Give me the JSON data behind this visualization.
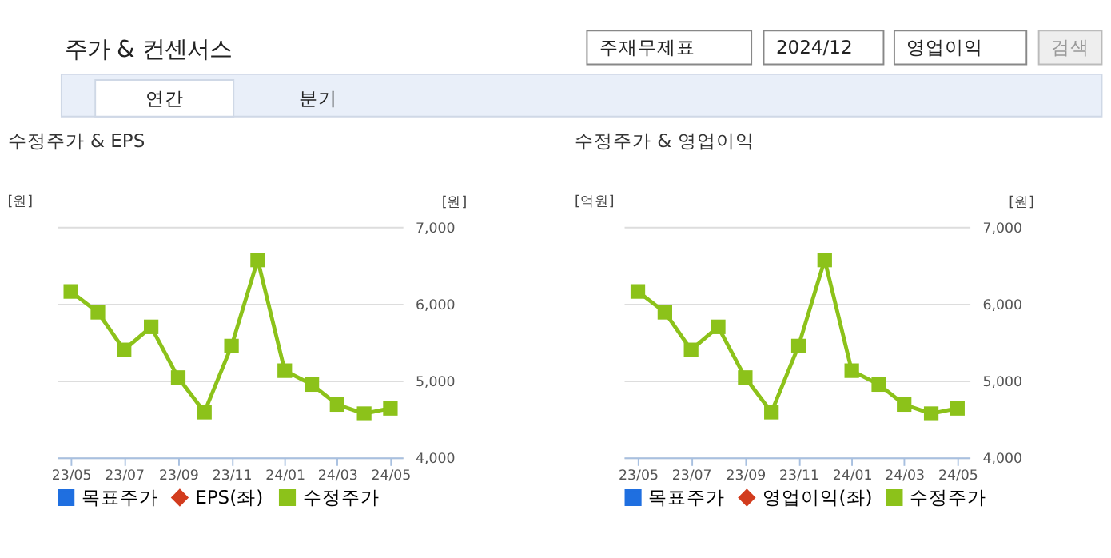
{
  "chart_data": [
    {
      "type": "other",
      "title": "주가 & 컨센서스",
      "annotations": [
        "주재무제표",
        "2024/12",
        "영업이익",
        "검색",
        "연간",
        "분기"
      ]
    },
    {
      "type": "line",
      "title": "수정주가 & EPS",
      "ylabel": "[원]",
      "y2label": "[원]",
      "x": [
        "2023-05",
        "2023-06",
        "2023-07",
        "2023-08",
        "2023-09",
        "2023-10",
        "2023-11",
        "2023-12",
        "2024-01",
        "2024-02",
        "2024-03",
        "2024-04",
        "2024-05"
      ],
      "xlim": [
        "2023-04-15",
        "2024-05-15"
      ],
      "xticks": [
        {
          "value": "2023-05",
          "label": "23/05"
        },
        {
          "value": "2023-07",
          "label": "23/07"
        },
        {
          "value": "2023-09",
          "label": "23/09"
        },
        {
          "value": "2023-11",
          "label": "23/11"
        },
        {
          "value": "2024-01",
          "label": "24/01"
        },
        {
          "value": "2024-03",
          "label": "24/03"
        },
        {
          "value": "2024-05",
          "label": "24/05"
        }
      ],
      "y2lim": [
        4000,
        7000
      ],
      "y2ticks": [
        {
          "value": 4000,
          "label": "4,000"
        },
        {
          "value": 5000,
          "label": "5,000"
        },
        {
          "value": 6000,
          "label": "6,000"
        },
        {
          "value": 7000,
          "label": "7,000"
        }
      ],
      "grid": "y",
      "legend": "bottom",
      "line_style": "solid",
      "series": [
        {
          "name": "목표주가",
          "color": "#1f6fe0",
          "marker": "square",
          "values": [
            null,
            null,
            null,
            null,
            null,
            null,
            null,
            null,
            null,
            null,
            null,
            null,
            null
          ]
        },
        {
          "name": "EPS(좌)",
          "color": "#d23c1e",
          "marker": "diamond",
          "values": [
            null,
            null,
            null,
            null,
            null,
            null,
            null,
            null,
            null,
            null,
            null,
            null,
            null
          ]
        },
        {
          "name": "수정주가",
          "color": "#8cc21a",
          "marker": "square",
          "axis": "y2",
          "values": [
            6160,
            5890,
            5400,
            5700,
            5040,
            4590,
            5450,
            6570,
            5130,
            4950,
            4690,
            4570,
            4640
          ]
        }
      ]
    },
    {
      "type": "line",
      "title": "수정주가 & 영업이익",
      "ylabel": "[억원]",
      "y2label": "[원]",
      "x": [
        "2023-05",
        "2023-06",
        "2023-07",
        "2023-08",
        "2023-09",
        "2023-10",
        "2023-11",
        "2023-12",
        "2024-01",
        "2024-02",
        "2024-03",
        "2024-04",
        "2024-05"
      ],
      "xlim": [
        "2023-04-15",
        "2024-05-15"
      ],
      "xticks": [
        {
          "value": "2023-05",
          "label": "23/05"
        },
        {
          "value": "2023-07",
          "label": "23/07"
        },
        {
          "value": "2023-09",
          "label": "23/09"
        },
        {
          "value": "2023-11",
          "label": "23/11"
        },
        {
          "value": "2024-01",
          "label": "24/01"
        },
        {
          "value": "2024-03",
          "label": "24/03"
        },
        {
          "value": "2024-05",
          "label": "24/05"
        }
      ],
      "y2lim": [
        4000,
        7000
      ],
      "y2ticks": [
        {
          "value": 4000,
          "label": "4,000"
        },
        {
          "value": 5000,
          "label": "5,000"
        },
        {
          "value": 6000,
          "label": "6,000"
        },
        {
          "value": 7000,
          "label": "7,000"
        }
      ],
      "grid": "y",
      "legend": "bottom",
      "line_style": "solid",
      "series": [
        {
          "name": "목표주가",
          "color": "#1f6fe0",
          "marker": "square",
          "values": [
            null,
            null,
            null,
            null,
            null,
            null,
            null,
            null,
            null,
            null,
            null,
            null,
            null
          ]
        },
        {
          "name": "영업이익(좌)",
          "color": "#d23c1e",
          "marker": "diamond",
          "values": [
            null,
            null,
            null,
            null,
            null,
            null,
            null,
            null,
            null,
            null,
            null,
            null,
            null
          ]
        },
        {
          "name": "수정주가",
          "color": "#8cc21a",
          "marker": "square",
          "axis": "y2",
          "values": [
            6160,
            5890,
            5400,
            5700,
            5040,
            4590,
            5450,
            6570,
            5130,
            4950,
            4690,
            4570,
            4640
          ]
        }
      ]
    }
  ]
}
